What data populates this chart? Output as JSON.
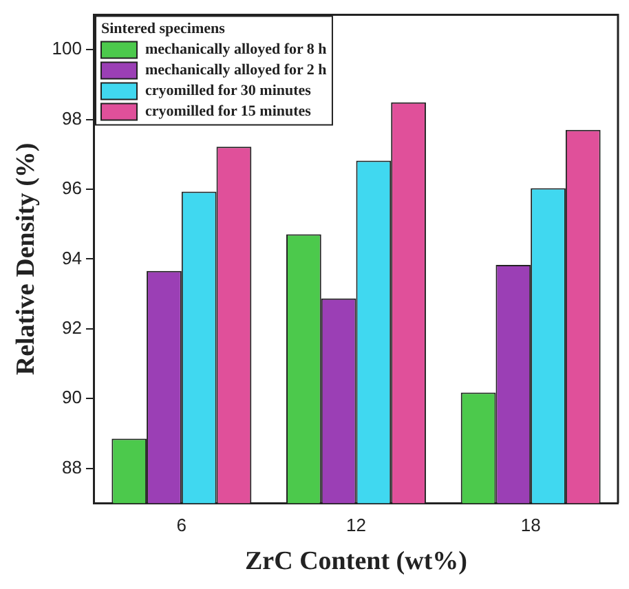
{
  "chart_data": {
    "type": "bar",
    "xlabel": "ZrC Content (wt%)",
    "ylabel": "Relative Density (%)",
    "legend_title": "Sintered specimens",
    "categories": [
      "6",
      "12",
      "18"
    ],
    "series": [
      {
        "name": "mechanically alloyed for 8 h",
        "color": "#4cc94c",
        "values": [
          88.85,
          94.71,
          90.17
        ]
      },
      {
        "name": "mechanically alloyed for 2 h",
        "color": "#9b3fb5",
        "values": [
          93.66,
          92.87,
          93.83
        ]
      },
      {
        "name": "cryomilled for 30 minutes",
        "color": "#40d8f0",
        "values": [
          95.93,
          96.82,
          96.03
        ]
      },
      {
        "name": "cryomilled for 15 minutes",
        "color": "#e0509a",
        "values": [
          97.22,
          98.49,
          97.7
        ]
      }
    ],
    "ylim": [
      87,
      101
    ],
    "yticks": [
      88,
      90,
      92,
      94,
      96,
      98,
      100
    ],
    "grid": false,
    "legend": "top left"
  }
}
